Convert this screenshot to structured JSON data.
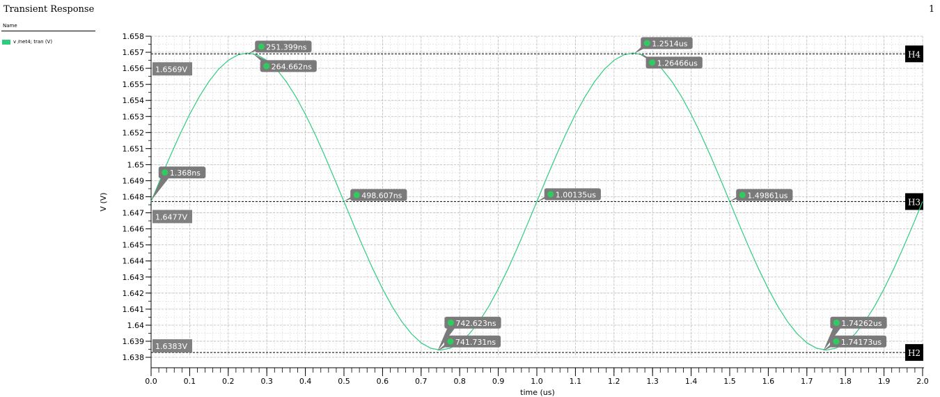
{
  "window": {
    "title": "Transient Response",
    "page_number": "1"
  },
  "legend": {
    "header": "Name",
    "items": [
      {
        "label": "v /net4; tran (V)",
        "color": "#2ecc7e"
      }
    ]
  },
  "chart_data": {
    "type": "line",
    "xlabel": "time (us)",
    "ylabel": "V (V)",
    "xlim": [
      0.0,
      2.0
    ],
    "ylim": [
      1.638,
      1.658
    ],
    "x_ticks": [
      "0.0",
      "0.1",
      "0.2",
      "0.3",
      "0.4",
      "0.5",
      "0.6",
      "0.7",
      "0.8",
      "0.9",
      "1.0",
      "1.1",
      "1.2",
      "1.3",
      "1.4",
      "1.5",
      "1.6",
      "1.7",
      "1.8",
      "1.9",
      "2.0"
    ],
    "y_ticks": [
      "1.638",
      "1.639",
      "1.64",
      "1.641",
      "1.642",
      "1.643",
      "1.644",
      "1.645",
      "1.646",
      "1.647",
      "1.648",
      "1.649",
      "1.65",
      "1.651",
      "1.652",
      "1.653",
      "1.654",
      "1.655",
      "1.656",
      "1.657",
      "1.658"
    ],
    "grid": true,
    "series": [
      {
        "name": "v /net4; tran (V)",
        "color": "#2ecc7e",
        "offset": 1.6477,
        "amplitude": 0.00925,
        "period_us": 1.0,
        "x_start": 0.0,
        "x_end": 2.0,
        "samples": 81
      }
    ],
    "horizontal_markers": [
      {
        "id": "H4",
        "value": 1.6569,
        "label": "1.6569V",
        "show_label": true
      },
      {
        "id": "H3",
        "value": 1.6477,
        "label": "1.6477V",
        "show_label": true
      },
      {
        "id": "H2",
        "value": 1.6383,
        "label": "1.6383V",
        "show_label": true
      }
    ],
    "point_markers": [
      {
        "label": "1.368ns",
        "x": 0.001368,
        "y": 1.6478
      },
      {
        "label": "251.399ns",
        "x": 0.251399,
        "y": 1.6569
      },
      {
        "label": "264.662ns",
        "x": 0.264662,
        "y": 1.6569
      },
      {
        "label": "498.607ns",
        "x": 0.498607,
        "y": 1.6477
      },
      {
        "label": "742.623ns",
        "x": 0.742623,
        "y": 1.6384
      },
      {
        "label": "741.731ns",
        "x": 0.741731,
        "y": 1.6384
      },
      {
        "label": "1.00135us",
        "x": 1.00135,
        "y": 1.6477
      },
      {
        "label": "1.2514us",
        "x": 1.2514,
        "y": 1.6569
      },
      {
        "label": "1.26466us",
        "x": 1.26466,
        "y": 1.6569
      },
      {
        "label": "1.49861us",
        "x": 1.49861,
        "y": 1.6477
      },
      {
        "label": "1.74262us",
        "x": 1.74262,
        "y": 1.6384
      },
      {
        "label": "1.74173us",
        "x": 1.74173,
        "y": 1.6384
      }
    ]
  }
}
